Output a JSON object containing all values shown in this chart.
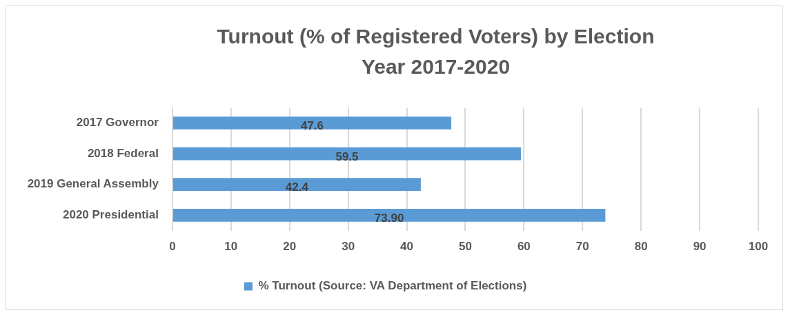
{
  "chart_data": {
    "type": "bar",
    "orientation": "horizontal",
    "title": "Turnout (% of Registered Voters) by Election Year 2017-2020",
    "categories": [
      "2017 Governor",
      "2018 Federal",
      "2019 General Assembly",
      "2020 Presidential"
    ],
    "series": [
      {
        "name": "% Turnout (Source: VA Department of Elections)",
        "color": "#5b9bd5",
        "values": [
          47.6,
          59.5,
          42.4,
          73.9
        ],
        "value_labels": [
          "47.6",
          "59.5",
          "42.4",
          "73.90"
        ]
      }
    ],
    "xlim": [
      0,
      100
    ],
    "xticks": [
      0,
      10,
      20,
      30,
      40,
      50,
      60,
      70,
      80,
      90,
      100
    ],
    "grid": "x",
    "legend": "bottom"
  }
}
